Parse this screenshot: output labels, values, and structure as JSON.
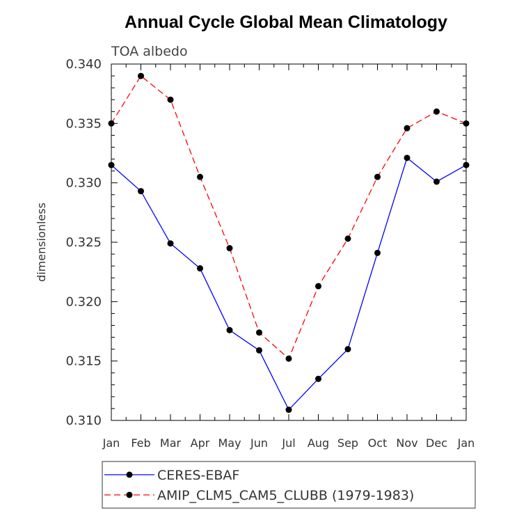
{
  "chart_data": {
    "type": "line",
    "title": "Annual Cycle Global Mean Climatology",
    "subtitle": "TOA albedo",
    "xlabel": "",
    "ylabel": "dimensionless",
    "categories": [
      "Jan",
      "Feb",
      "Mar",
      "Apr",
      "May",
      "Jun",
      "Jul",
      "Aug",
      "Sep",
      "Oct",
      "Nov",
      "Dec",
      "Jan"
    ],
    "ylim": [
      0.31,
      0.34
    ],
    "yticks": [
      "0.310",
      "0.315",
      "0.320",
      "0.325",
      "0.330",
      "0.335",
      "0.340"
    ],
    "grid": false,
    "legend_position": "bottom",
    "series": [
      {
        "name": "CERES-EBAF",
        "color": "#0000ff",
        "dash": "solid",
        "values": [
          0.3315,
          0.3293,
          0.3249,
          0.3228,
          0.3176,
          0.3159,
          0.3109,
          0.3135,
          0.316,
          0.3241,
          0.3321,
          0.3301,
          0.3315
        ]
      },
      {
        "name": "AMIP_CLM5_CAM5_CLUBB (1979-1983)",
        "color": "#ff0000",
        "dash": "dashed",
        "values": [
          0.335,
          0.339,
          0.337,
          0.3305,
          0.3245,
          0.3174,
          0.3152,
          0.3213,
          0.3253,
          0.3305,
          0.3346,
          0.336,
          0.335
        ]
      }
    ]
  }
}
